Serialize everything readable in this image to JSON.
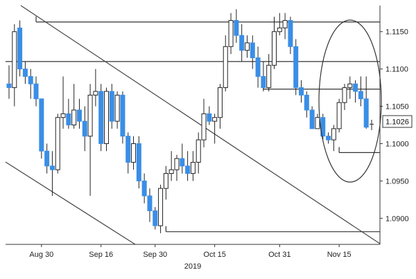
{
  "chart_data": {
    "type": "candlestick",
    "title": "",
    "xlabel": "",
    "ylabel": "",
    "year_label": "2019",
    "x_ticks": [
      "Aug 30",
      "Sep 16",
      "Sep 30",
      "Oct 15",
      "Oct 31",
      "Nov 15"
    ],
    "y_ticks": [
      "1.0900",
      "1.0950",
      "1.1000",
      "1.1050",
      "1.1100",
      "1.1150"
    ],
    "y_range": [
      1.0865,
      1.1185
    ],
    "last_price": "1.1026",
    "colors": {
      "up": "#ffffff",
      "down": "#3a8ee6",
      "wick": "#222222",
      "lines": "#333333",
      "tag": "#ffffff"
    },
    "candles": [
      {
        "date": "Aug 22",
        "open": 1.108,
        "high": 1.1105,
        "low": 1.106,
        "close": 1.1075
      },
      {
        "date": "Aug 23",
        "open": 1.1075,
        "high": 1.116,
        "low": 1.105,
        "close": 1.115
      },
      {
        "date": "Aug 26",
        "open": 1.1155,
        "high": 1.1165,
        "low": 1.109,
        "close": 1.11
      },
      {
        "date": "Aug 27",
        "open": 1.11,
        "high": 1.111,
        "low": 1.108,
        "close": 1.109
      },
      {
        "date": "Aug 28",
        "open": 1.109,
        "high": 1.11,
        "low": 1.106,
        "close": 1.108
      },
      {
        "date": "Aug 29",
        "open": 1.108,
        "high": 1.109,
        "low": 1.105,
        "close": 1.106
      },
      {
        "date": "Aug 30",
        "open": 1.106,
        "high": 1.106,
        "low": 1.098,
        "close": 1.099
      },
      {
        "date": "Sep 02",
        "open": 1.099,
        "high": 1.1,
        "low": 1.096,
        "close": 1.097
      },
      {
        "date": "Sep 03",
        "open": 1.097,
        "high": 1.099,
        "low": 1.093,
        "close": 1.0965
      },
      {
        "date": "Sep 04",
        "open": 1.0965,
        "high": 1.104,
        "low": 1.096,
        "close": 1.1035
      },
      {
        "date": "Sep 05",
        "open": 1.1035,
        "high": 1.109,
        "low": 1.102,
        "close": 1.104
      },
      {
        "date": "Sep 06",
        "open": 1.104,
        "high": 1.106,
        "low": 1.102,
        "close": 1.1025
      },
      {
        "date": "Sep 09",
        "open": 1.1025,
        "high": 1.108,
        "low": 1.102,
        "close": 1.1045
      },
      {
        "date": "Sep 10",
        "open": 1.1045,
        "high": 1.106,
        "low": 1.102,
        "close": 1.103
      },
      {
        "date": "Sep 11",
        "open": 1.103,
        "high": 1.105,
        "low": 1.099,
        "close": 1.101
      },
      {
        "date": "Sep 12",
        "open": 1.101,
        "high": 1.108,
        "low": 1.093,
        "close": 1.1065
      },
      {
        "date": "Sep 13",
        "open": 1.1065,
        "high": 1.11,
        "low": 1.105,
        "close": 1.107
      },
      {
        "date": "Sep 16",
        "open": 1.107,
        "high": 1.108,
        "low": 1.099,
        "close": 1.1
      },
      {
        "date": "Sep 17",
        "open": 1.1,
        "high": 1.1075,
        "low": 1.099,
        "close": 1.107
      },
      {
        "date": "Sep 18",
        "open": 1.107,
        "high": 1.108,
        "low": 1.102,
        "close": 1.103
      },
      {
        "date": "Sep 19",
        "open": 1.103,
        "high": 1.107,
        "low": 1.102,
        "close": 1.1065
      },
      {
        "date": "Sep 20",
        "open": 1.1065,
        "high": 1.107,
        "low": 1.1,
        "close": 1.101
      },
      {
        "date": "Sep 23",
        "open": 1.101,
        "high": 1.1015,
        "low": 1.096,
        "close": 1.0975
      },
      {
        "date": "Sep 24",
        "open": 1.0975,
        "high": 1.101,
        "low": 1.0965,
        "close": 1.1
      },
      {
        "date": "Sep 25",
        "open": 1.1,
        "high": 1.101,
        "low": 1.094,
        "close": 1.095
      },
      {
        "date": "Sep 26",
        "open": 1.095,
        "high": 1.096,
        "low": 1.092,
        "close": 1.093
      },
      {
        "date": "Sep 27",
        "open": 1.093,
        "high": 1.094,
        "low": 1.0895,
        "close": 1.091
      },
      {
        "date": "Sep 30",
        "open": 1.091,
        "high": 1.0915,
        "low": 1.0885,
        "close": 1.089
      },
      {
        "date": "Oct 01",
        "open": 1.089,
        "high": 1.0945,
        "low": 1.088,
        "close": 1.094
      },
      {
        "date": "Oct 02",
        "open": 1.094,
        "high": 1.097,
        "low": 1.0925,
        "close": 1.096
      },
      {
        "date": "Oct 03",
        "open": 1.096,
        "high": 1.099,
        "low": 1.095,
        "close": 1.0965
      },
      {
        "date": "Oct 04",
        "open": 1.0965,
        "high": 1.0985,
        "low": 1.095,
        "close": 1.098
      },
      {
        "date": "Oct 07",
        "open": 1.098,
        "high": 1.1,
        "low": 1.096,
        "close": 1.097
      },
      {
        "date": "Oct 08",
        "open": 1.097,
        "high": 1.099,
        "low": 1.095,
        "close": 1.096
      },
      {
        "date": "Oct 09",
        "open": 1.096,
        "high": 1.099,
        "low": 1.095,
        "close": 1.0975
      },
      {
        "date": "Oct 10",
        "open": 1.0975,
        "high": 1.1015,
        "low": 1.096,
        "close": 1.1005
      },
      {
        "date": "Oct 11",
        "open": 1.1005,
        "high": 1.106,
        "low": 1.0995,
        "close": 1.104
      },
      {
        "date": "Oct 14",
        "open": 1.104,
        "high": 1.105,
        "low": 1.1025,
        "close": 1.103
      },
      {
        "date": "Oct 15",
        "open": 1.103,
        "high": 1.104,
        "low": 1.1,
        "close": 1.1035
      },
      {
        "date": "Oct 16",
        "open": 1.1035,
        "high": 1.108,
        "low": 1.102,
        "close": 1.1075
      },
      {
        "date": "Oct 17",
        "open": 1.1075,
        "high": 1.1145,
        "low": 1.107,
        "close": 1.113
      },
      {
        "date": "Oct 18",
        "open": 1.113,
        "high": 1.1175,
        "low": 1.112,
        "close": 1.1165
      },
      {
        "date": "Oct 21",
        "open": 1.1165,
        "high": 1.118,
        "low": 1.1135,
        "close": 1.1145
      },
      {
        "date": "Oct 22",
        "open": 1.1145,
        "high": 1.116,
        "low": 1.111,
        "close": 1.1125
      },
      {
        "date": "Oct 23",
        "open": 1.1125,
        "high": 1.1145,
        "low": 1.1115,
        "close": 1.1135
      },
      {
        "date": "Oct 24",
        "open": 1.1135,
        "high": 1.1145,
        "low": 1.11,
        "close": 1.1115
      },
      {
        "date": "Oct 25",
        "open": 1.1115,
        "high": 1.113,
        "low": 1.1075,
        "close": 1.109
      },
      {
        "date": "Oct 28",
        "open": 1.109,
        "high": 1.111,
        "low": 1.107,
        "close": 1.1075
      },
      {
        "date": "Oct 29",
        "open": 1.1075,
        "high": 1.112,
        "low": 1.107,
        "close": 1.1105
      },
      {
        "date": "Oct 30",
        "open": 1.1105,
        "high": 1.117,
        "low": 1.11,
        "close": 1.115
      },
      {
        "date": "Oct 31",
        "open": 1.115,
        "high": 1.1175,
        "low": 1.1145,
        "close": 1.1155
      },
      {
        "date": "Nov 01",
        "open": 1.1155,
        "high": 1.1175,
        "low": 1.114,
        "close": 1.1165
      },
      {
        "date": "Nov 04",
        "open": 1.1165,
        "high": 1.117,
        "low": 1.112,
        "close": 1.113
      },
      {
        "date": "Nov 05",
        "open": 1.113,
        "high": 1.114,
        "low": 1.1065,
        "close": 1.1075
      },
      {
        "date": "Nov 06",
        "open": 1.1075,
        "high": 1.1085,
        "low": 1.1055,
        "close": 1.1065
      },
      {
        "date": "Nov 07",
        "open": 1.1065,
        "high": 1.107,
        "low": 1.1035,
        "close": 1.1045
      },
      {
        "date": "Nov 08",
        "open": 1.1045,
        "high": 1.105,
        "low": 1.102,
        "close": 1.102
      },
      {
        "date": "Nov 11",
        "open": 1.102,
        "high": 1.104,
        "low": 1.102,
        "close": 1.1035
      },
      {
        "date": "Nov 12",
        "open": 1.1035,
        "high": 1.104,
        "low": 1.1005,
        "close": 1.101
      },
      {
        "date": "Nov 13",
        "open": 1.101,
        "high": 1.1015,
        "low": 1.1,
        "close": 1.1005
      },
      {
        "date": "Nov 14",
        "open": 1.1005,
        "high": 1.1025,
        "low": 1.099,
        "close": 1.102
      },
      {
        "date": "Nov 15",
        "open": 1.102,
        "high": 1.106,
        "low": 1.1015,
        "close": 1.1055
      },
      {
        "date": "Nov 18",
        "open": 1.1055,
        "high": 1.108,
        "low": 1.1045,
        "close": 1.1075
      },
      {
        "date": "Nov 19",
        "open": 1.1075,
        "high": 1.109,
        "low": 1.106,
        "close": 1.108
      },
      {
        "date": "Nov 20",
        "open": 1.108,
        "high": 1.1085,
        "low": 1.1055,
        "close": 1.107
      },
      {
        "date": "Nov 21",
        "open": 1.107,
        "high": 1.109,
        "low": 1.105,
        "close": 1.106
      },
      {
        "date": "Nov 22",
        "open": 1.106,
        "high": 1.109,
        "low": 1.102,
        "close": 1.1022
      },
      {
        "date": "Nov 25",
        "open": 1.1026,
        "high": 1.1032,
        "low": 1.1018,
        "close": 1.1026
      }
    ],
    "support_resistance_levels": [
      1.1163,
      1.111,
      1.1073,
      1.0988,
      1.0882
    ],
    "trend_channel": "two parallel descending lines",
    "annotation": "ellipse highlighting recent price action"
  }
}
